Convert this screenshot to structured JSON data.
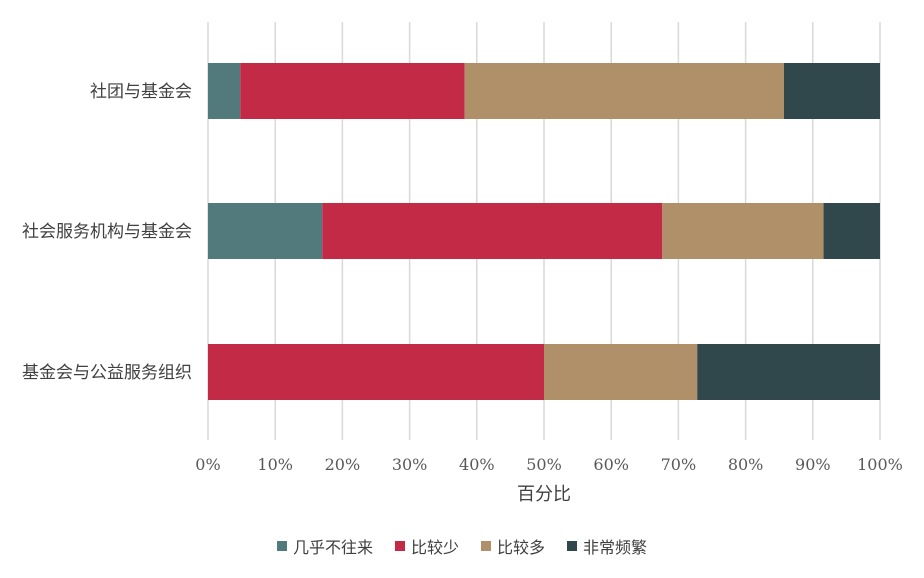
{
  "chart_data": {
    "type": "bar",
    "orientation": "horizontal",
    "stacked": true,
    "normalized_percent": true,
    "xlabel": "百分比",
    "ylabel": "",
    "xlim": [
      0,
      100
    ],
    "x_ticks": [
      "0%",
      "10%",
      "20%",
      "30%",
      "40%",
      "50%",
      "60%",
      "70%",
      "80%",
      "90%",
      "100%"
    ],
    "grid": "vertical",
    "legend_position": "bottom",
    "categories": [
      "社团与基金会",
      "社会服务机构与基金会",
      "基金会与公益服务组织"
    ],
    "series": [
      {
        "name": "几乎不往来",
        "color": "#527a7d",
        "values": [
          4.8,
          17,
          0
        ]
      },
      {
        "name": "比较少",
        "color": "#c22a46",
        "values": [
          33.4,
          50.6,
          50
        ]
      },
      {
        "name": "比较多",
        "color": "#b09068",
        "values": [
          47.5,
          24,
          22.8
        ]
      },
      {
        "name": "非常频繁",
        "color": "#30474b",
        "values": [
          14.3,
          8.4,
          27.2
        ]
      }
    ]
  }
}
